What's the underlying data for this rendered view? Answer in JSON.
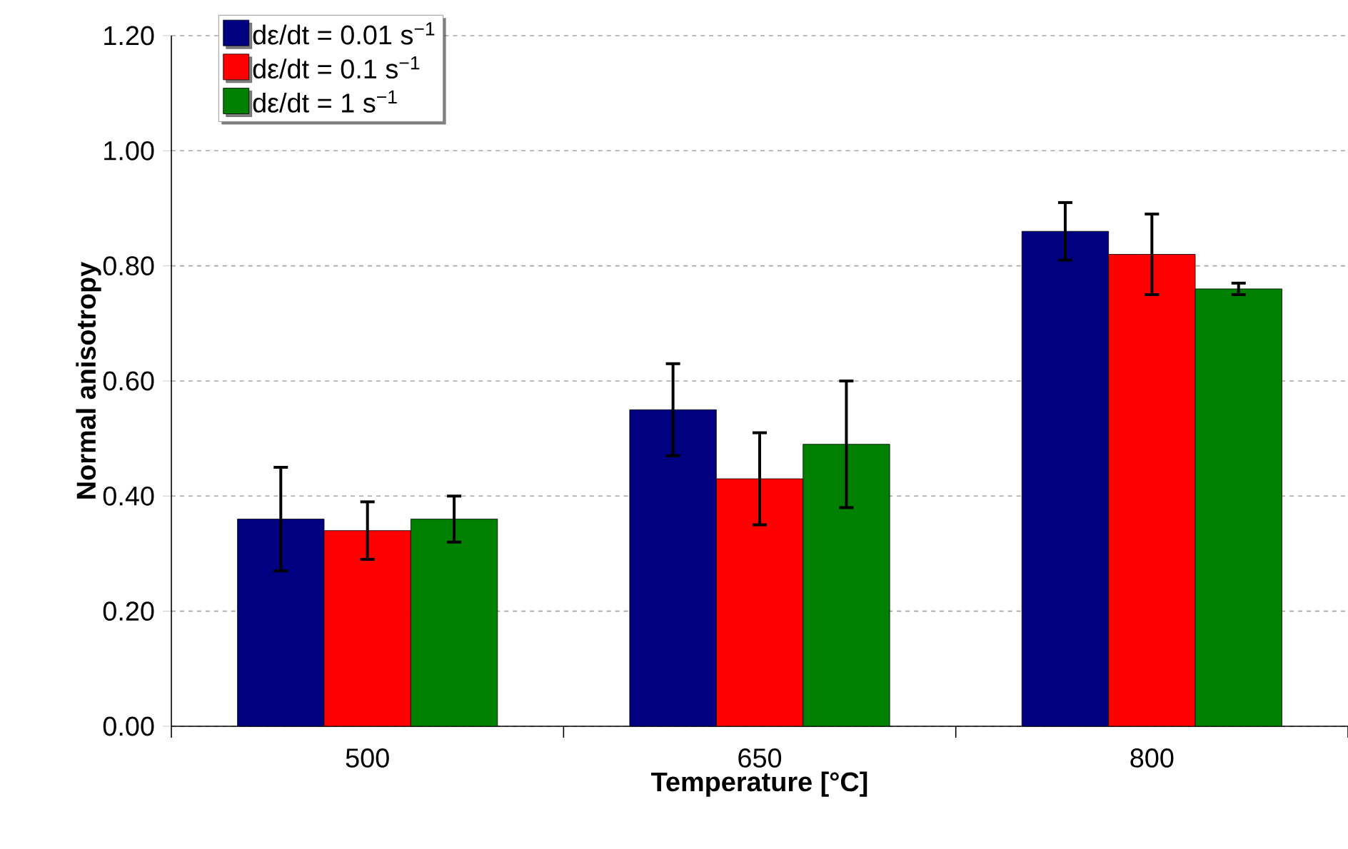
{
  "chart_data": {
    "type": "bar",
    "xlabel": "Temperature [°C]",
    "ylabel": "Normal anisotropy",
    "categories": [
      "500",
      "650",
      "800"
    ],
    "series": [
      {
        "name": "dε/dt = 0.01 s$^{−1}$",
        "color": "#000080",
        "values": [
          0.36,
          0.55,
          0.86
        ],
        "errors": [
          0.09,
          0.08,
          0.05
        ]
      },
      {
        "name": "dε/dt = 0.1 s$^{−1}$",
        "color": "#ff0000",
        "values": [
          0.34,
          0.43,
          0.82
        ],
        "errors": [
          0.05,
          0.08,
          0.07
        ]
      },
      {
        "name": "dε/dt = 1 s$^{−1}$",
        "color": "#008000",
        "values": [
          0.36,
          0.49,
          0.76
        ],
        "errors": [
          0.04,
          0.11,
          0.01
        ]
      }
    ],
    "ylim": [
      0,
      1.2
    ],
    "yticks": [
      {
        "value": 0,
        "label": "0.00"
      },
      {
        "value": 0.2,
        "label": "0.20"
      },
      {
        "value": 0.4,
        "label": "0.40"
      },
      {
        "value": 0.6,
        "label": "0.60"
      },
      {
        "value": 0.8,
        "label": "0.80"
      },
      {
        "value": 1.0,
        "label": "1.00"
      },
      {
        "value": 1.2,
        "label": "1.20"
      }
    ],
    "grid": "y",
    "legend": "top left"
  }
}
